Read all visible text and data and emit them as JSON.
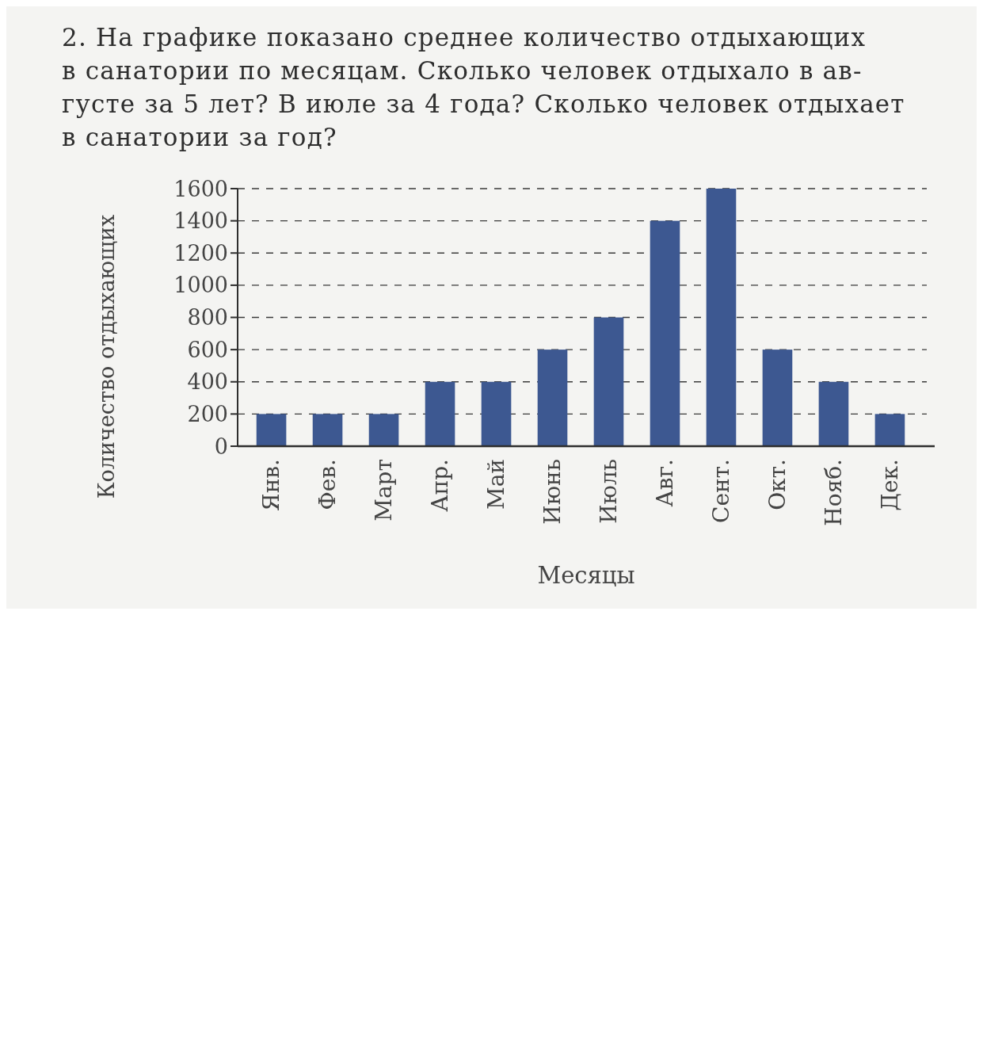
{
  "chart_data": {
    "type": "bar",
    "title": "2. На графике показано среднее количество отдыхающих\nв санатории по месяцам. Сколько человек отдыхало в ав-\nгусте за 5 лет? В июле за 4 года? Сколько человек отдыхает\nв санатории за год?",
    "xlabel": "Месяцы",
    "ylabel": "Количество отдыхающих",
    "categories": [
      "Янв.",
      "Фев.",
      "Март",
      "Апр.",
      "Май",
      "Июнь",
      "Июль",
      "Авг.",
      "Сент.",
      "Окт.",
      "Нояб.",
      "Дек."
    ],
    "values": [
      200,
      200,
      200,
      400,
      400,
      600,
      800,
      1400,
      1600,
      600,
      400,
      200
    ],
    "color": "#3d5891",
    "ylim": [
      0,
      1600
    ],
    "yticks": [
      0,
      200,
      400,
      600,
      800,
      1000,
      1200,
      1400,
      1600
    ],
    "grid": "y"
  }
}
